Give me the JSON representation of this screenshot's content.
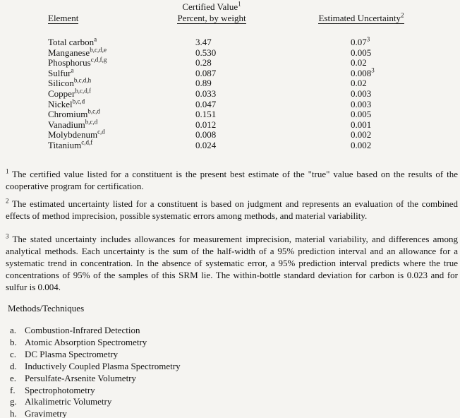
{
  "page": {
    "background": "#f5f4f1",
    "text_color": "#141414"
  },
  "table": {
    "headers": {
      "element": "Element",
      "certified_line1": "Certified Value",
      "certified_line1_sup": "1",
      "certified_line2": "Percent, by weight",
      "uncertainty": "Estimated Uncertainty",
      "uncertainty_sup": "2"
    },
    "rows": [
      {
        "element": "Total carbon",
        "element_sup": "a",
        "value": "3.47",
        "uncertainty": "0.07",
        "uncertainty_sup": "3"
      },
      {
        "element": "Manganese",
        "element_sup": "b,c,d,e",
        "value": "0.530",
        "uncertainty": "0.005"
      },
      {
        "element": "Phosphorus",
        "element_sup": "c,d,f,g",
        "value": "0.28",
        "uncertainty": "0.02"
      },
      {
        "element": "Sulfur",
        "element_sup": "a",
        "value": "0.087",
        "uncertainty": "0.008",
        "uncertainty_sup": "3"
      },
      {
        "element": "Silicon",
        "element_sup": "b,c,d,h",
        "value": "0.89",
        "uncertainty": "0.02"
      },
      {
        "element": "Copper",
        "element_sup": "b,c,d,f",
        "value": "0.033",
        "uncertainty": "0.003"
      },
      {
        "element": "Nickel",
        "element_sup": "b,c,d",
        "value": "0.047",
        "uncertainty": "0.003"
      },
      {
        "element": "Chromium",
        "element_sup": "b,c,d",
        "value": "0.151",
        "uncertainty": "0.005"
      },
      {
        "element": "Vanadium",
        "element_sup": "b,c,d",
        "value": "0.012",
        "uncertainty": "0.001"
      },
      {
        "element": "Molybdenum",
        "element_sup": "c,d",
        "value": "0.008",
        "uncertainty": "0.002"
      },
      {
        "element": "Titanium",
        "element_sup": "c,d,f",
        "value": "0.024",
        "uncertainty": "0.002"
      }
    ]
  },
  "footnotes": [
    {
      "marker": "1",
      "text": "The certified value listed for a constituent is the present best estimate of the \"true\" value based on the results of the cooperative program for certification."
    },
    {
      "marker": "2",
      "text": "The estimated uncertainty listed for a constituent is based on judgment and represents an evaluation of the combined effects of method imprecision, possible systematic errors among methods, and material variability."
    },
    {
      "marker": "3",
      "text": "The stated uncertainty includes allowances for measurement imprecision, material variability, and differences among analytical methods. Each uncertainty is the sum of the half-width of a 95% prediction interval and an allowance for a systematic trend in concentration. In the absence of systematic error, a 95% prediction interval predicts where the true concentrations of 95% of the samples of this SRM lie. The within-bottle standard deviation for carbon is 0.023 and for sulfur is 0.004."
    }
  ],
  "methods": {
    "title": "Methods/Techniques",
    "items": [
      {
        "letter": "a.",
        "label": "Combustion-Infrared Detection"
      },
      {
        "letter": "b.",
        "label": "Atomic Absorption Spectrometry"
      },
      {
        "letter": "c.",
        "label": "DC Plasma Spectrometry"
      },
      {
        "letter": "d.",
        "label": "Inductively Coupled Plasma Spectrometry"
      },
      {
        "letter": "e.",
        "label": "Persulfate-Arsenite Volumetry"
      },
      {
        "letter": "f.",
        "label": "Spectrophotometry"
      },
      {
        "letter": "g.",
        "label": "Alkalimetric Volumetry"
      },
      {
        "letter": "h.",
        "label": "Gravimetry"
      }
    ]
  }
}
